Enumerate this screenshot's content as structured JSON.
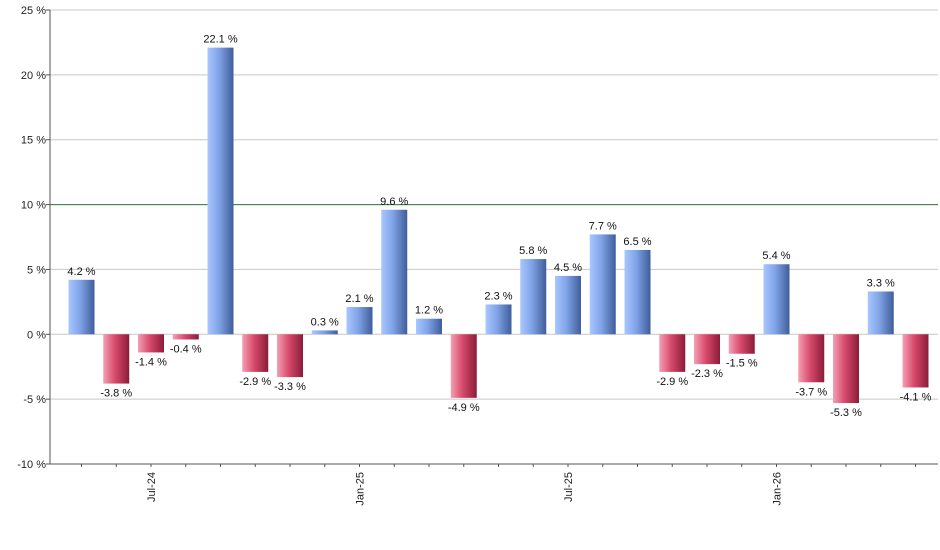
{
  "chart_data": {
    "type": "bar",
    "title": "",
    "xlabel": "",
    "ylabel": "",
    "ylim": [
      -10,
      25
    ],
    "yticks": [
      -10,
      -5,
      0,
      5,
      10,
      15,
      20,
      25
    ],
    "ytick_labels": [
      "-10 %",
      "-5 %",
      "0 %",
      "5 %",
      "10 %",
      "15 %",
      "20 %",
      "25 %"
    ],
    "value_suffix": " %",
    "grid": true,
    "reference_line": {
      "value": 10,
      "color": "#2e7d32"
    },
    "x_tick_labels": [
      {
        "index": 2,
        "label": "Jul-24"
      },
      {
        "index": 8,
        "label": "Jan-25"
      },
      {
        "index": 14,
        "label": "Jul-25"
      },
      {
        "index": 20,
        "label": "Jan-26"
      }
    ],
    "values": [
      4.2,
      -3.8,
      -1.4,
      -0.4,
      22.1,
      -2.9,
      -3.3,
      0.3,
      2.1,
      9.6,
      1.2,
      -4.9,
      2.3,
      5.8,
      4.5,
      7.7,
      6.5,
      -2.9,
      -2.3,
      -1.5,
      5.4,
      -3.7,
      -5.3,
      3.3,
      -4.1
    ],
    "data_labels": [
      "4.2 %",
      "-3.8 %",
      "-1.4 %",
      "-0.4 %",
      "22.1 %",
      "-2.9 %",
      "-3.3 %",
      "0.3 %",
      "2.1 %",
      "9.6 %",
      "1.2 %",
      "-4.9 %",
      "2.3 %",
      "5.8 %",
      "4.5 %",
      "7.7 %",
      "6.5 %",
      "-2.9 %",
      "-2.3 %",
      "-1.5 %",
      "5.4 %",
      "-3.7 %",
      "-5.3 %",
      "3.3 %",
      "-4.1 %"
    ],
    "colors": {
      "positive_light": "#a9c7ff",
      "positive_mid": "#7fa3e6",
      "positive_dark": "#3f5d9a",
      "negative_light": "#f4a0b3",
      "negative_mid": "#d84a6c",
      "negative_dark": "#8a1c38",
      "grid": "#c8c8c8",
      "axis": "#555555"
    }
  }
}
